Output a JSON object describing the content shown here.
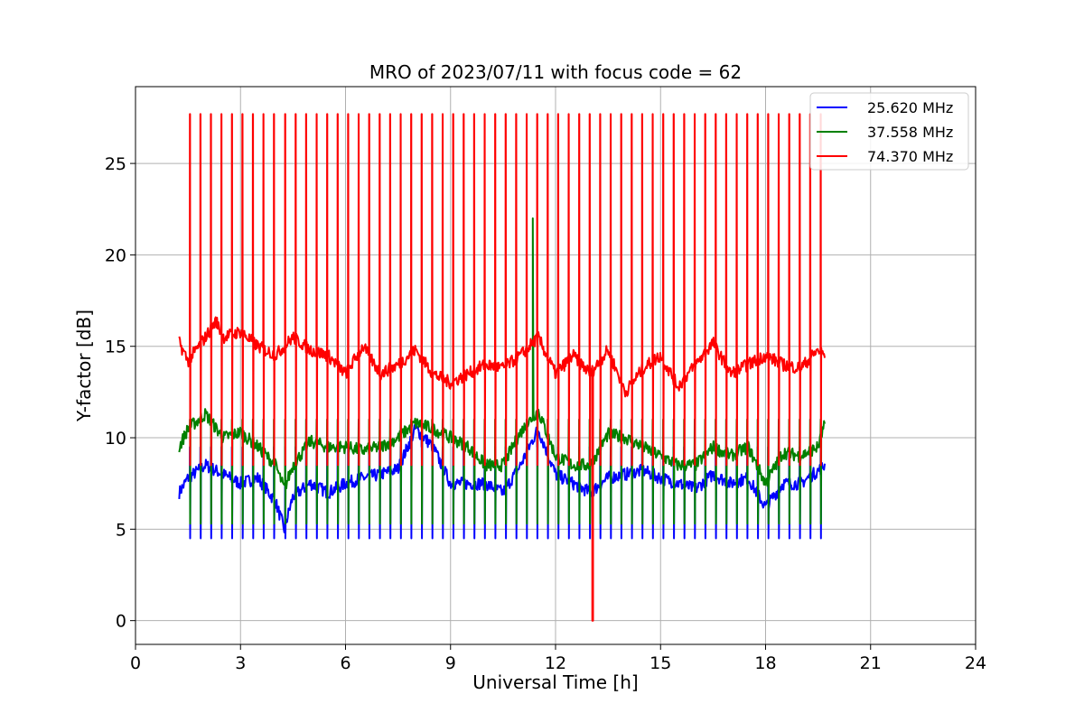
{
  "chart_data": {
    "type": "line",
    "title": "MRO of 2023/07/11 with focus code = 62",
    "xlabel": "Universal Time [h]",
    "ylabel": "Y-factor [dB]",
    "xlim": [
      0,
      24
    ],
    "ylim": [
      -1.3,
      29.2
    ],
    "xticks": [
      0,
      3,
      6,
      9,
      12,
      15,
      18,
      21,
      24
    ],
    "yticks": [
      0,
      5,
      10,
      15,
      20,
      25
    ],
    "grid": true,
    "legend_position": "top-right",
    "calibration_period_h": 0.3,
    "series": [
      {
        "name": "25.620 MHz",
        "color": "#0000ff",
        "baseline": {
          "x": [
            1.25,
            1.5,
            2.0,
            2.5,
            3.0,
            3.5,
            4.0,
            4.25,
            4.5,
            5.0,
            5.5,
            6.0,
            6.5,
            7.0,
            7.5,
            8.0,
            8.5,
            9.0,
            9.5,
            10.0,
            10.5,
            11.0,
            11.5,
            12.0,
            12.5,
            13.0,
            13.5,
            14.0,
            14.5,
            15.0,
            15.5,
            16.0,
            16.5,
            17.0,
            17.5,
            18.0,
            18.5,
            19.0,
            19.5,
            19.7
          ],
          "y": [
            7.0,
            7.8,
            8.5,
            8.0,
            7.5,
            7.8,
            6.5,
            5.0,
            6.8,
            7.5,
            7.0,
            7.5,
            7.8,
            8.0,
            8.3,
            10.5,
            9.5,
            7.5,
            7.5,
            7.5,
            7.0,
            8.5,
            10.5,
            8.0,
            7.5,
            7.0,
            7.8,
            8.0,
            8.2,
            7.8,
            7.5,
            7.2,
            8.0,
            7.5,
            7.8,
            6.2,
            7.5,
            7.5,
            8.2,
            8.5
          ]
        },
        "pulse_min": 4.5,
        "pulse_max": 9.5
      },
      {
        "name": "37.558 MHz",
        "color": "#008000",
        "baseline": {
          "x": [
            1.25,
            1.5,
            2.0,
            2.5,
            3.0,
            3.5,
            4.0,
            4.25,
            4.5,
            5.0,
            5.5,
            6.0,
            6.5,
            7.0,
            7.5,
            8.0,
            8.5,
            9.0,
            9.5,
            10.0,
            10.5,
            11.0,
            11.5,
            12.0,
            12.5,
            13.0,
            13.5,
            14.0,
            14.5,
            15.0,
            15.5,
            16.0,
            16.5,
            17.0,
            17.5,
            18.0,
            18.5,
            19.0,
            19.5,
            19.7
          ],
          "y": [
            9.5,
            10.5,
            11.3,
            10.0,
            10.3,
            9.5,
            8.5,
            7.2,
            8.5,
            9.8,
            9.5,
            9.5,
            9.3,
            9.5,
            10.0,
            10.8,
            10.5,
            10.0,
            9.5,
            8.5,
            8.5,
            10.3,
            11.5,
            9.0,
            8.5,
            8.5,
            10.2,
            10.0,
            9.5,
            9.0,
            8.5,
            8.5,
            9.5,
            9.0,
            9.5,
            7.5,
            9.2,
            9.0,
            9.5,
            10.8
          ]
        },
        "pulse_min": 5.3,
        "pulse_max": 11.0,
        "spikes": [
          {
            "x": 11.35,
            "y": 22.0
          }
        ]
      },
      {
        "name": "74.370 MHz",
        "color": "#ff0000",
        "baseline": {
          "x": [
            1.25,
            1.5,
            2.0,
            2.3,
            2.5,
            3.0,
            3.5,
            4.0,
            4.5,
            5.0,
            5.5,
            6.0,
            6.5,
            7.0,
            7.5,
            8.0,
            8.5,
            9.0,
            9.5,
            10.0,
            10.5,
            11.0,
            11.5,
            12.0,
            12.5,
            13.0,
            13.5,
            14.0,
            14.5,
            15.0,
            15.5,
            16.0,
            16.5,
            17.0,
            17.5,
            18.0,
            18.5,
            19.0,
            19.5,
            19.7
          ],
          "y": [
            15.2,
            14.2,
            15.5,
            16.4,
            15.5,
            15.8,
            15.0,
            14.5,
            15.5,
            14.8,
            14.5,
            13.5,
            15.0,
            13.5,
            14.0,
            14.8,
            13.5,
            13.0,
            13.5,
            14.0,
            13.8,
            14.5,
            15.5,
            13.5,
            14.5,
            13.5,
            14.8,
            12.5,
            13.8,
            14.5,
            12.8,
            14.0,
            15.2,
            13.5,
            14.0,
            14.5,
            14.0,
            13.8,
            14.8,
            14.5
          ]
        },
        "pulse_min": 8.5,
        "pulse_max": 27.7,
        "drops": [
          {
            "x": 13.05,
            "y": 0.0
          }
        ]
      }
    ]
  }
}
